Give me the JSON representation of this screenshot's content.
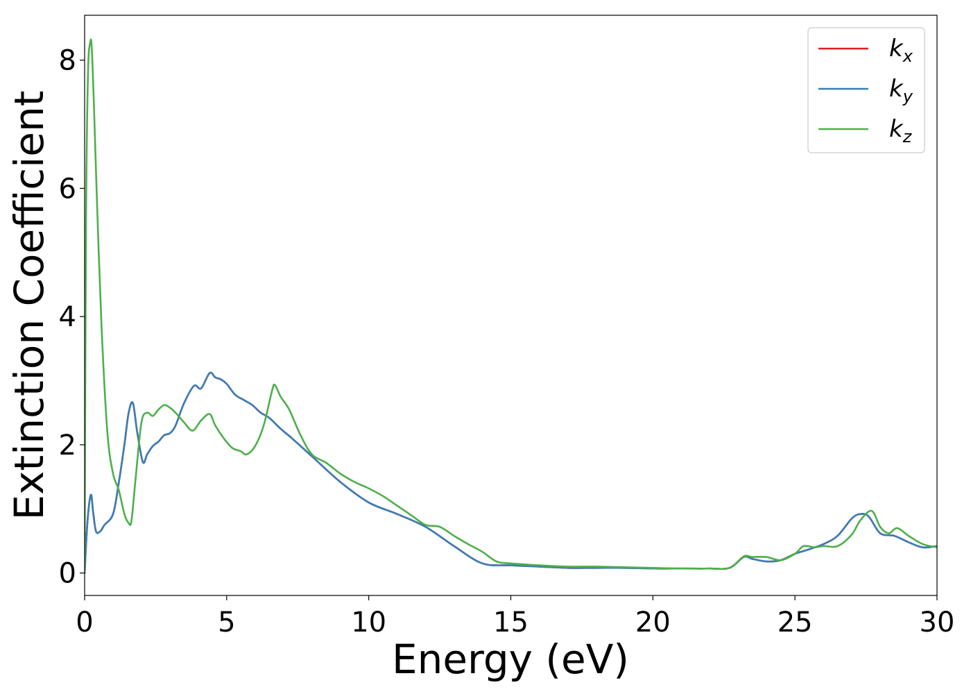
{
  "chart_data": {
    "type": "line",
    "xlabel": "Energy (eV)",
    "ylabel": "Extinction Coefficient",
    "xlim": [
      0,
      30
    ],
    "ylim": [
      -0.35,
      8.7
    ],
    "xticks": [
      0,
      5,
      10,
      15,
      20,
      25,
      30
    ],
    "xtick_labels": [
      "0",
      "5",
      "10",
      "15",
      "20",
      "25",
      "30"
    ],
    "yticks": [
      0,
      2,
      4,
      6,
      8
    ],
    "ytick_labels": [
      "0",
      "2",
      "4",
      "6",
      "8"
    ],
    "grid": false,
    "legend_position": "top-right",
    "series": [
      {
        "name": "kx",
        "label_main": "k",
        "label_sub": "x",
        "color": "#e41a1c",
        "x": [
          0,
          0.1,
          0.22,
          0.3,
          0.4,
          0.55,
          0.7,
          1.0,
          1.2,
          1.4,
          1.55,
          1.7,
          1.85,
          2.05,
          2.2,
          2.4,
          2.6,
          2.8,
          3.0,
          3.2,
          3.5,
          3.85,
          4.1,
          4.4,
          4.6,
          4.8,
          5.0,
          5.3,
          5.6,
          5.9,
          6.2,
          6.5,
          6.9,
          7.3,
          8.0,
          9.0,
          10.0,
          11.0,
          12.0,
          13.0,
          14.0,
          15.0,
          16.0,
          17.0,
          18.0,
          19.0,
          20.0,
          21.0,
          22.0,
          22.7,
          23.2,
          23.5,
          24.0,
          24.5,
          25.0,
          25.5,
          26.0,
          26.5,
          27.0,
          27.3,
          27.6,
          28.0,
          28.5,
          29.0,
          29.5,
          30.0
        ],
        "values": [
          0,
          0.8,
          1.22,
          0.95,
          0.65,
          0.65,
          0.75,
          0.92,
          1.4,
          2.0,
          2.5,
          2.65,
          2.2,
          1.73,
          1.85,
          1.98,
          2.05,
          2.15,
          2.18,
          2.3,
          2.65,
          2.92,
          2.88,
          3.12,
          3.05,
          3.02,
          2.95,
          2.78,
          2.7,
          2.62,
          2.5,
          2.42,
          2.25,
          2.1,
          1.82,
          1.42,
          1.1,
          0.92,
          0.72,
          0.42,
          0.15,
          0.12,
          0.1,
          0.08,
          0.08,
          0.08,
          0.07,
          0.07,
          0.07,
          0.08,
          0.25,
          0.22,
          0.18,
          0.2,
          0.3,
          0.37,
          0.45,
          0.58,
          0.85,
          0.92,
          0.88,
          0.62,
          0.58,
          0.48,
          0.4,
          0.42
        ]
      },
      {
        "name": "ky",
        "label_main": "k",
        "label_sub": "y",
        "color": "#377eb8",
        "x": [
          0,
          0.1,
          0.22,
          0.3,
          0.4,
          0.55,
          0.7,
          1.0,
          1.2,
          1.4,
          1.55,
          1.7,
          1.85,
          2.05,
          2.2,
          2.4,
          2.6,
          2.8,
          3.0,
          3.2,
          3.5,
          3.85,
          4.1,
          4.4,
          4.6,
          4.8,
          5.0,
          5.3,
          5.6,
          5.9,
          6.2,
          6.5,
          6.9,
          7.3,
          8.0,
          9.0,
          10.0,
          11.0,
          12.0,
          13.0,
          14.0,
          15.0,
          16.0,
          17.0,
          18.0,
          19.0,
          20.0,
          21.0,
          22.0,
          22.7,
          23.2,
          23.5,
          24.0,
          24.5,
          25.0,
          25.5,
          26.0,
          26.5,
          27.0,
          27.3,
          27.6,
          28.0,
          28.5,
          29.0,
          29.5,
          30.0
        ],
        "values": [
          0,
          0.8,
          1.22,
          0.95,
          0.65,
          0.65,
          0.75,
          0.92,
          1.4,
          2.0,
          2.5,
          2.65,
          2.2,
          1.73,
          1.85,
          1.98,
          2.05,
          2.15,
          2.18,
          2.3,
          2.65,
          2.92,
          2.88,
          3.12,
          3.05,
          3.02,
          2.95,
          2.78,
          2.7,
          2.62,
          2.5,
          2.42,
          2.25,
          2.1,
          1.82,
          1.42,
          1.1,
          0.92,
          0.72,
          0.42,
          0.15,
          0.12,
          0.1,
          0.08,
          0.08,
          0.08,
          0.07,
          0.07,
          0.07,
          0.08,
          0.25,
          0.22,
          0.18,
          0.2,
          0.3,
          0.37,
          0.45,
          0.58,
          0.85,
          0.92,
          0.88,
          0.62,
          0.58,
          0.48,
          0.4,
          0.42
        ]
      },
      {
        "name": "kz",
        "label_main": "k",
        "label_sub": "z",
        "color": "#4daf4a",
        "x": [
          0,
          0.05,
          0.12,
          0.2,
          0.25,
          0.32,
          0.45,
          0.6,
          0.8,
          1.0,
          1.2,
          1.4,
          1.55,
          1.65,
          1.8,
          2.0,
          2.2,
          2.4,
          2.6,
          2.8,
          3.0,
          3.2,
          3.5,
          3.8,
          4.1,
          4.4,
          4.6,
          4.9,
          5.2,
          5.5,
          5.7,
          6.0,
          6.3,
          6.6,
          6.7,
          6.9,
          7.2,
          7.6,
          8.0,
          8.5,
          9.0,
          9.5,
          10.0,
          10.5,
          11.0,
          11.5,
          12.0,
          12.5,
          13.0,
          13.5,
          14.0,
          14.5,
          15.0,
          16.0,
          17.0,
          18.0,
          19.0,
          20.0,
          21.0,
          22.0,
          22.7,
          23.2,
          23.5,
          24.0,
          24.5,
          25.0,
          25.3,
          25.7,
          26.0,
          26.5,
          27.0,
          27.3,
          27.7,
          28.0,
          28.3,
          28.6,
          29.0,
          29.5,
          30.0
        ],
        "values": [
          0,
          5.5,
          7.8,
          8.28,
          8.2,
          7.4,
          5.6,
          3.8,
          2.2,
          1.55,
          1.3,
          0.92,
          0.78,
          0.82,
          1.5,
          2.35,
          2.5,
          2.45,
          2.55,
          2.62,
          2.58,
          2.5,
          2.35,
          2.22,
          2.38,
          2.48,
          2.3,
          2.1,
          1.95,
          1.9,
          1.85,
          1.98,
          2.3,
          2.85,
          2.93,
          2.75,
          2.55,
          2.15,
          1.85,
          1.72,
          1.55,
          1.42,
          1.32,
          1.2,
          1.05,
          0.9,
          0.75,
          0.72,
          0.58,
          0.45,
          0.33,
          0.18,
          0.15,
          0.12,
          0.1,
          0.1,
          0.09,
          0.08,
          0.07,
          0.07,
          0.08,
          0.26,
          0.25,
          0.25,
          0.2,
          0.3,
          0.42,
          0.4,
          0.42,
          0.42,
          0.6,
          0.82,
          0.97,
          0.72,
          0.62,
          0.7,
          0.58,
          0.45,
          0.4
        ]
      }
    ]
  }
}
